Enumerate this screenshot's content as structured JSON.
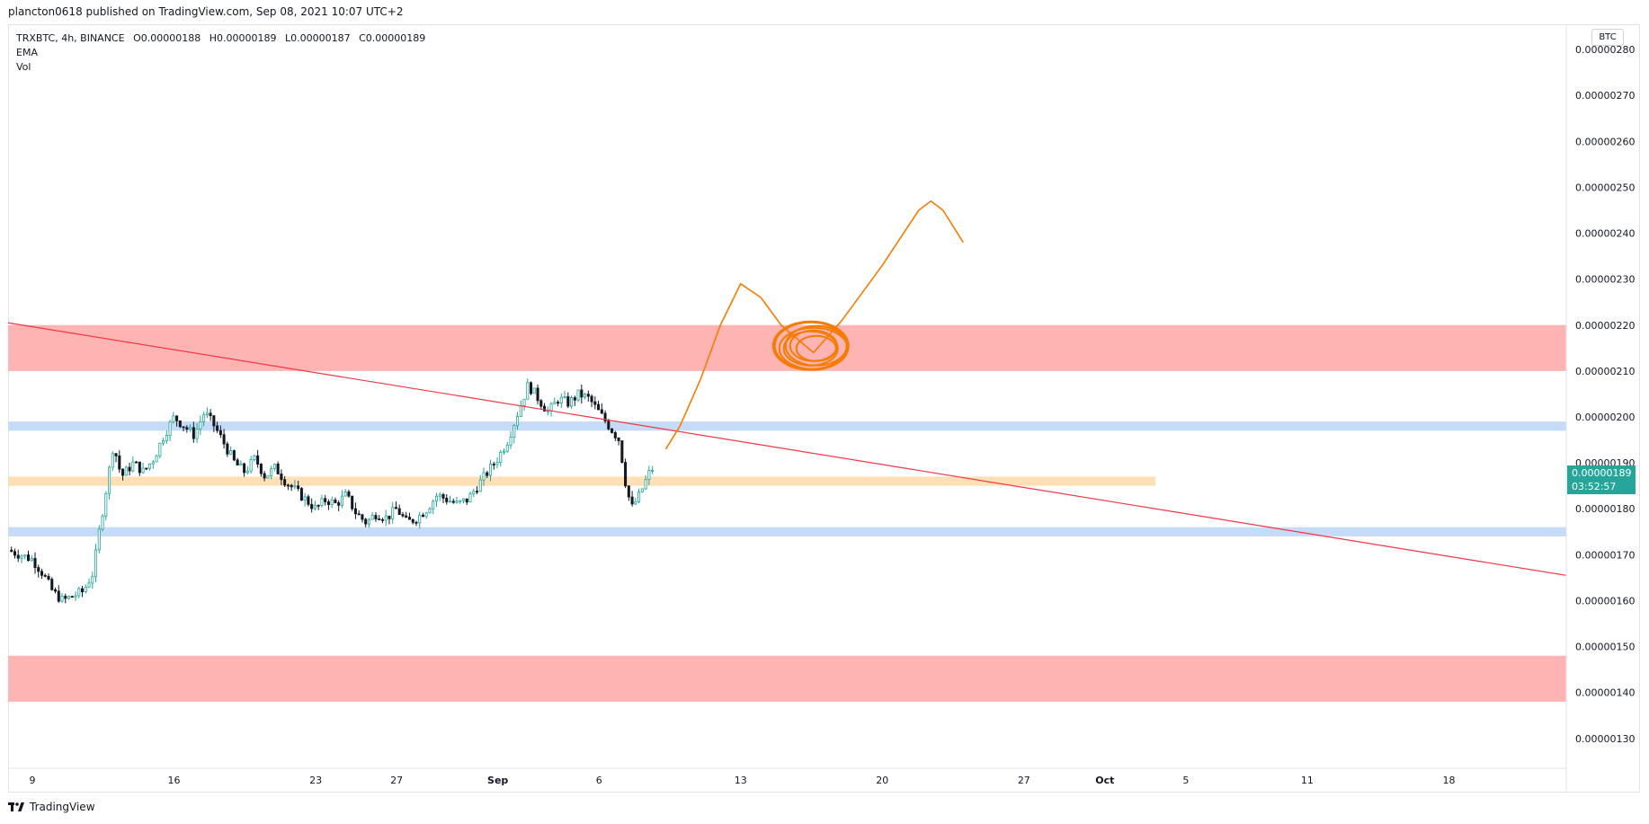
{
  "header": {
    "text": "plancton0618 published on TradingView.com, Sep 08, 2021 10:07 UTC+2"
  },
  "legend": {
    "symbol": "TRXBTC, 4h, BINANCE",
    "open": "O0.00000188",
    "high": "H0.00000189",
    "low": "L0.00000187",
    "close": "C0.00000189",
    "ema": "EMA",
    "vol": "Vol"
  },
  "price_scale": {
    "currency": "BTC"
  },
  "last_price": {
    "price": "0.00000189",
    "countdown": "03:52:57",
    "color": "#26a69a"
  },
  "footer": {
    "logo_text": "TradingView"
  },
  "colors": {
    "up": "#26a69a",
    "down": "#131722",
    "red_zone": "#ffb4b4",
    "blue_zone": "#c6dbf7",
    "orange_zone": "#ffd9a8",
    "trendline": "#f23645",
    "drawing": "#f57c00"
  },
  "chart_data": {
    "type": "candlestick",
    "symbol": "TRXBTC",
    "timeframe": "4h",
    "exchange": "BINANCE",
    "y_ticks": [
      1.3e-06,
      1.4e-06,
      1.5e-06,
      1.6e-06,
      1.7e-06,
      1.8e-06,
      1.9e-06,
      2e-06,
      2.1e-06,
      2.2e-06,
      2.3e-06,
      2.4e-06,
      2.5e-06,
      2.6e-06,
      2.7e-06,
      2.8e-06
    ],
    "y_tick_labels": [
      "0.00000130",
      "0.00000140",
      "0.00000150",
      "0.00000160",
      "0.00000170",
      "0.00000180",
      "0.00000190",
      "0.00000200",
      "0.00000210",
      "0.00000220",
      "0.00000230",
      "0.00000240",
      "0.00000250",
      "0.00000260",
      "0.00000270",
      "0.00000280"
    ],
    "ylim": [
      1.235e-06,
      2.855e-06
    ],
    "x_ticks": [
      {
        "label": "9",
        "day": 0
      },
      {
        "label": "16",
        "day": 7
      },
      {
        "label": "23",
        "day": 14
      },
      {
        "label": "27",
        "day": 18
      },
      {
        "label": "Sep",
        "day": 23
      },
      {
        "label": "6",
        "day": 28
      },
      {
        "label": "13",
        "day": 35
      },
      {
        "label": "20",
        "day": 42
      },
      {
        "label": "27",
        "day": 49
      },
      {
        "label": "Oct",
        "day": 53
      },
      {
        "label": "5",
        "day": 57
      },
      {
        "label": "11",
        "day": 63
      },
      {
        "label": "18",
        "day": 70
      }
    ],
    "xlim_days": [
      -1.2,
      75.8
    ],
    "price_path": [
      [
        -1.2,
        171
      ],
      [
        0,
        169
      ],
      [
        0.5,
        166
      ],
      [
        1,
        162
      ],
      [
        1.5,
        160
      ],
      [
        2,
        161
      ],
      [
        2.5,
        162
      ],
      [
        3,
        166
      ],
      [
        3.3,
        175
      ],
      [
        3.6,
        183
      ],
      [
        4,
        194
      ],
      [
        4.4,
        187
      ],
      [
        5,
        190
      ],
      [
        5.5,
        188
      ],
      [
        6,
        191
      ],
      [
        6.5,
        196
      ],
      [
        7,
        200
      ],
      [
        7.5,
        198
      ],
      [
        8,
        196
      ],
      [
        8.5,
        201
      ],
      [
        9,
        198
      ],
      [
        9.5,
        194
      ],
      [
        10,
        190
      ],
      [
        10.5,
        188
      ],
      [
        11,
        191
      ],
      [
        11.5,
        187
      ],
      [
        12,
        189
      ],
      [
        12.5,
        186
      ],
      [
        13,
        184
      ],
      [
        13.5,
        182
      ],
      [
        14,
        180
      ],
      [
        14.5,
        182
      ],
      [
        15,
        181
      ],
      [
        15.5,
        183
      ],
      [
        16,
        179
      ],
      [
        16.5,
        177
      ],
      [
        17,
        179
      ],
      [
        17.5,
        178
      ],
      [
        18,
        180
      ],
      [
        18.5,
        177
      ],
      [
        19,
        178
      ],
      [
        19.5,
        180
      ],
      [
        20,
        183
      ],
      [
        20.5,
        182
      ],
      [
        21,
        181
      ],
      [
        21.5,
        182
      ],
      [
        22,
        185
      ],
      [
        22.5,
        188
      ],
      [
        23,
        191
      ],
      [
        23.5,
        195
      ],
      [
        24,
        201
      ],
      [
        24.5,
        207
      ],
      [
        25,
        204
      ],
      [
        25.5,
        201
      ],
      [
        26,
        204
      ],
      [
        26.5,
        203
      ],
      [
        27,
        205
      ],
      [
        27.5,
        204
      ],
      [
        28,
        201
      ],
      [
        28.5,
        198
      ],
      [
        29,
        195
      ],
      [
        29.3,
        186
      ],
      [
        29.6,
        180
      ],
      [
        30,
        183
      ],
      [
        30.5,
        188
      ],
      [
        30.7,
        189
      ]
    ],
    "candle_step_days": 0.1667,
    "zones": [
      {
        "type": "resistance",
        "color": "red",
        "from": 2.1e-06,
        "to": 2.2e-06,
        "x_end": "right"
      },
      {
        "type": "level",
        "color": "blue",
        "from": 1.97e-06,
        "to": 1.99e-06,
        "x_end": "right"
      },
      {
        "type": "level",
        "color": "orange",
        "from": 1.85e-06,
        "to": 1.87e-06,
        "x_end_day": 55.5
      },
      {
        "type": "level",
        "color": "blue",
        "from": 1.74e-06,
        "to": 1.76e-06,
        "x_end": "right"
      },
      {
        "type": "support",
        "color": "red",
        "from": 1.38e-06,
        "to": 1.48e-06,
        "x_end": "right"
      }
    ],
    "trendline": {
      "from": [
        -1.2,
        2.205e-06
      ],
      "to": [
        75.8,
        1.655e-06
      ]
    },
    "projection": {
      "path": [
        [
          31.3,
          1.93e-06
        ],
        [
          32,
          1.98e-06
        ],
        [
          33,
          2.08e-06
        ],
        [
          34,
          2.2e-06
        ],
        [
          35,
          2.29e-06
        ],
        [
          36,
          2.26e-06
        ],
        [
          37,
          2.2e-06
        ],
        [
          38.6,
          2.14e-06
        ],
        [
          40,
          2.21e-06
        ],
        [
          42,
          2.33e-06
        ],
        [
          43.8,
          2.45e-06
        ],
        [
          44.4,
          2.47e-06
        ],
        [
          45,
          2.45e-06
        ],
        [
          46,
          2.38e-06
        ]
      ],
      "loop_center": [
        38.6,
        2.155e-06
      ]
    },
    "last": {
      "open": 1.88e-06,
      "high": 1.89e-06,
      "low": 1.87e-06,
      "close": 1.89e-06
    }
  }
}
